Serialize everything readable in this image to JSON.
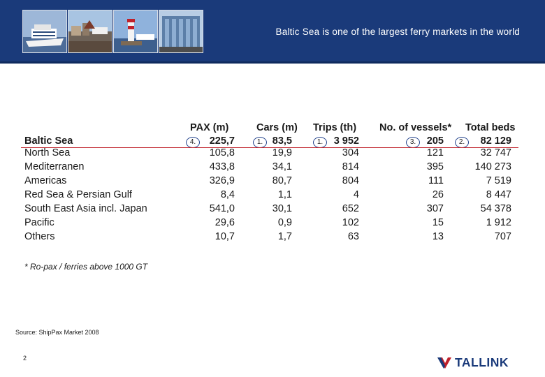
{
  "header": {
    "title": "Baltic Sea is one of the largest ferry markets in the world"
  },
  "photos": [
    "ship-photo-icon",
    "harbor-photo-icon",
    "lighthouse-photo-icon",
    "terminal-photo-icon"
  ],
  "table": {
    "columns": [
      "PAX (m)",
      "Cars (m)",
      "Trips (th)",
      "No. of vessels*",
      "Total beds"
    ],
    "highlight_row": {
      "region": "Baltic Sea",
      "ranks": [
        "4.",
        "1.",
        "1.",
        "3.",
        "2."
      ],
      "values": [
        "225,7",
        "83,5",
        "3 952",
        "205",
        "82 129"
      ]
    },
    "rows": [
      {
        "region": "North Sea",
        "values": [
          "105,8",
          "19,9",
          "304",
          "121",
          "32 747"
        ]
      },
      {
        "region": "Mediterranen",
        "values": [
          "433,8",
          "34,1",
          "814",
          "395",
          "140 273"
        ]
      },
      {
        "region": "Americas",
        "values": [
          "326,9",
          "80,7",
          "804",
          "111",
          "7 519"
        ]
      },
      {
        "region": "Red Sea & Persian Gulf",
        "values": [
          "8,4",
          "1,1",
          "4",
          "26",
          "8 447"
        ]
      },
      {
        "region": "South East Asia incl. Japan",
        "values": [
          "541,0",
          "30,1",
          "652",
          "307",
          "54 378"
        ]
      },
      {
        "region": "Pacific",
        "values": [
          "29,6",
          "0,9",
          "102",
          "15",
          "1 912"
        ]
      },
      {
        "region": "Others",
        "values": [
          "10,7",
          "1,7",
          "63",
          "13",
          "707"
        ]
      }
    ]
  },
  "footnote": "* Ro-pax / ferries above 1000 GT",
  "source": "Source: ShipPax Market 2008",
  "page_number": "2",
  "logo": {
    "text": "TALLINK",
    "color": "#1a3a7a",
    "accent": "#c0202a"
  },
  "colors": {
    "header_bg": "#1a3a7a",
    "divider": "#c0202a"
  }
}
